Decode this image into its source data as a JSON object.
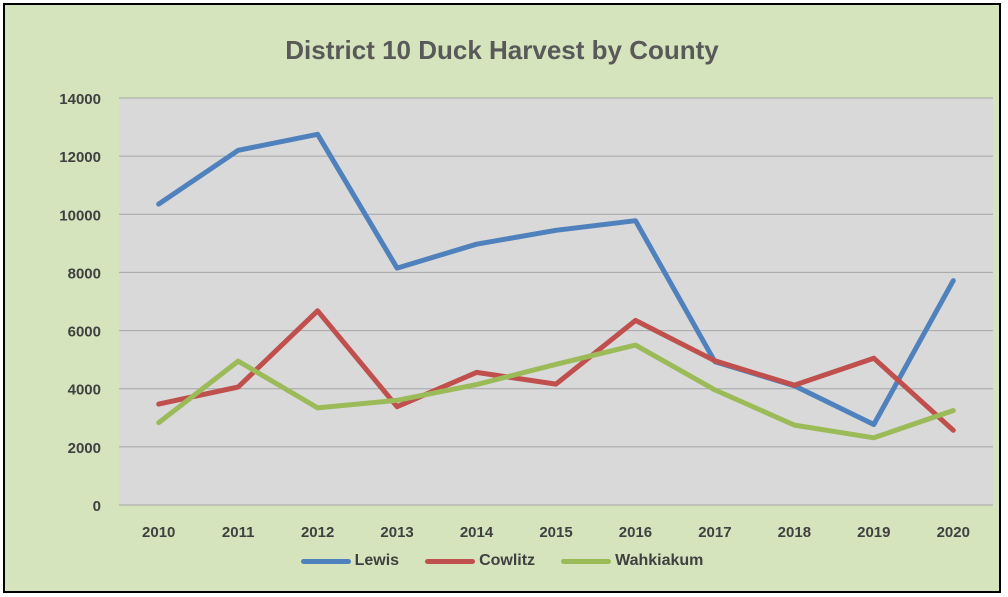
{
  "chart_data": {
    "type": "line",
    "title": "District 10 Duck Harvest by County",
    "xlabel": "",
    "ylabel": "",
    "categories": [
      "2010",
      "2011",
      "2012",
      "2013",
      "2014",
      "2015",
      "2016",
      "2017",
      "2018",
      "2019",
      "2020"
    ],
    "ylim": [
      0,
      14000
    ],
    "yticks": [
      "0",
      "2000",
      "4000",
      "6000",
      "8000",
      "10000",
      "12000",
      "14000"
    ],
    "grid": true,
    "legend_position": "bottom",
    "plot_background": "#d9d9d9",
    "chart_background": "#d6e4bd",
    "series": [
      {
        "name": "Lewis",
        "color": "#4f81bd",
        "values": [
          10350,
          12200,
          12750,
          8150,
          8970,
          9450,
          9780,
          4930,
          4100,
          2770,
          7720
        ]
      },
      {
        "name": "Cowlitz",
        "color": "#c0504d",
        "values": [
          3470,
          4060,
          6680,
          3380,
          4560,
          4160,
          6350,
          4960,
          4120,
          5050,
          2570
        ]
      },
      {
        "name": "Wahkiakum",
        "color": "#9bbb59",
        "values": [
          2830,
          4950,
          3340,
          3600,
          4140,
          4840,
          5500,
          3960,
          2750,
          2310,
          3250
        ]
      }
    ]
  }
}
